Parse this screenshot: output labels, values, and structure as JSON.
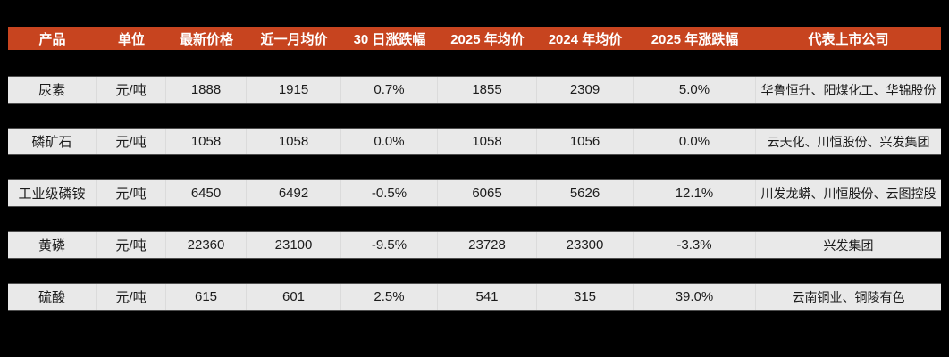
{
  "table": {
    "colors": {
      "page_background": "#000000",
      "header_bg": "#C7441F",
      "header_text": "#FFFFFF",
      "row_bg": "#E9E9E9",
      "row_text": "#1C1C1C"
    },
    "columns": [
      {
        "key": "product",
        "label": "产品"
      },
      {
        "key": "unit",
        "label": "单位"
      },
      {
        "key": "latest-price",
        "label": "最新价格"
      },
      {
        "key": "month-avg-price",
        "label": "近一月均价"
      },
      {
        "key": "change-30d",
        "label": "30 日涨跌幅"
      },
      {
        "key": "avg-2025",
        "label": "2025 年均价"
      },
      {
        "key": "avg-2024",
        "label": "2024 年均价"
      },
      {
        "key": "change-2025",
        "label": "2025 年涨跌幅"
      },
      {
        "key": "listed-companies",
        "label": "代表上市公司"
      }
    ],
    "rows": [
      [
        "尿素",
        "元/吨",
        "1888",
        "1915",
        "0.7%",
        "1855",
        "2309",
        "5.0%",
        "华鲁恒升、阳煤化工、华锦股份"
      ],
      [
        "磷矿石",
        "元/吨",
        "1058",
        "1058",
        "0.0%",
        "1058",
        "1056",
        "0.0%",
        "云天化、川恒股份、兴发集团"
      ],
      [
        "工业级磷铵",
        "元/吨",
        "6450",
        "6492",
        "-0.5%",
        "6065",
        "5626",
        "12.1%",
        "川发龙蟒、川恒股份、云图控股"
      ],
      [
        "黄磷",
        "元/吨",
        "22360",
        "23100",
        "-9.5%",
        "23728",
        "23300",
        "-3.3%",
        "兴发集团"
      ],
      [
        "硫酸",
        "元/吨",
        "615",
        "601",
        "2.5%",
        "541",
        "315",
        "39.0%",
        "云南铜业、铜陵有色"
      ]
    ]
  }
}
